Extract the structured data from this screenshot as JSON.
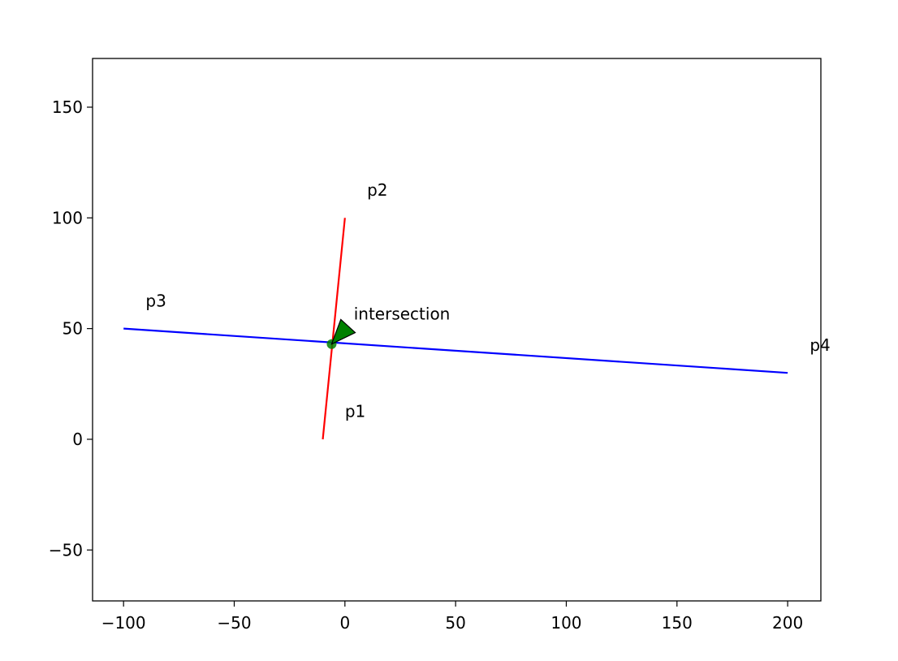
{
  "chart_data": {
    "type": "line",
    "title": "",
    "xlabel": "",
    "ylabel": "",
    "xlim": [
      -114,
      215
    ],
    "ylim": [
      -73,
      172
    ],
    "xticks": [
      -100,
      -50,
      0,
      50,
      100,
      150,
      200
    ],
    "yticks": [
      -50,
      0,
      50,
      100,
      150
    ],
    "xtick_labels": [
      "−100",
      "−50",
      "0",
      "50",
      "100",
      "150",
      "200"
    ],
    "ytick_labels": [
      "−50",
      "0",
      "50",
      "100",
      "150"
    ],
    "grid": false,
    "series": [
      {
        "color": "#ff0000",
        "x": [
          -10,
          0
        ],
        "y": [
          0,
          100
        ]
      },
      {
        "color": "#0000ff",
        "x": [
          -100,
          200
        ],
        "y": [
          50,
          30
        ]
      }
    ],
    "points": [
      {
        "color": "#008000",
        "x": -6,
        "y": 43
      }
    ],
    "annotations": [
      {
        "text": "p1",
        "x": 0,
        "y": 10
      },
      {
        "text": "p2",
        "x": 10,
        "y": 110
      },
      {
        "text": "p3",
        "x": -90,
        "y": 60
      },
      {
        "text": "p4",
        "x": 210,
        "y": 40
      },
      {
        "text": "intersection",
        "x": 4,
        "y": 54,
        "arrow_to": {
          "x": -6,
          "y": 43
        },
        "arrow_color": "#008000"
      }
    ]
  }
}
